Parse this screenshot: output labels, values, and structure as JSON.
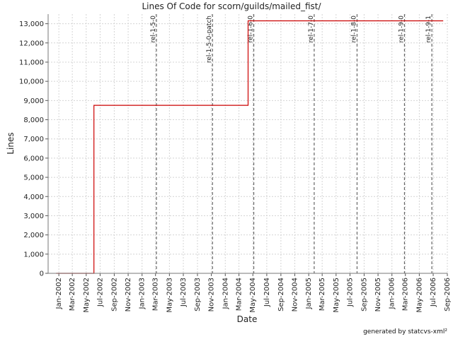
{
  "chart_data": {
    "type": "line",
    "title": "Lines Of Code for scorn/guilds/mailed_fist/",
    "xlabel": "Date",
    "ylabel": "Lines",
    "ylim": [
      0,
      13500
    ],
    "xlim": [
      "2001-11-15",
      "2006-09-01"
    ],
    "y_ticks": [
      0,
      1000,
      2000,
      3000,
      4000,
      5000,
      6000,
      7000,
      8000,
      9000,
      10000,
      11000,
      12000,
      13000
    ],
    "x_ticks": [
      {
        "date": "2002-01-01",
        "label": "Jan-2002"
      },
      {
        "date": "2002-03-01",
        "label": "Mar-2002"
      },
      {
        "date": "2002-05-01",
        "label": "May-2002"
      },
      {
        "date": "2002-07-01",
        "label": "Jul-2002"
      },
      {
        "date": "2002-09-01",
        "label": "Sep-2002"
      },
      {
        "date": "2002-11-01",
        "label": "Nov-2002"
      },
      {
        "date": "2003-01-01",
        "label": "Jan-2003"
      },
      {
        "date": "2003-03-01",
        "label": "Mar-2003"
      },
      {
        "date": "2003-05-01",
        "label": "May-2003"
      },
      {
        "date": "2003-07-01",
        "label": "Jul-2003"
      },
      {
        "date": "2003-09-01",
        "label": "Sep-2003"
      },
      {
        "date": "2003-11-01",
        "label": "Nov-2003"
      },
      {
        "date": "2004-01-01",
        "label": "Jan-2004"
      },
      {
        "date": "2004-03-01",
        "label": "Mar-2004"
      },
      {
        "date": "2004-05-01",
        "label": "May-2004"
      },
      {
        "date": "2004-07-01",
        "label": "Jul-2004"
      },
      {
        "date": "2004-09-01",
        "label": "Sep-2004"
      },
      {
        "date": "2004-11-01",
        "label": "Nov-2004"
      },
      {
        "date": "2005-01-01",
        "label": "Jan-2005"
      },
      {
        "date": "2005-03-01",
        "label": "Mar-2005"
      },
      {
        "date": "2005-05-01",
        "label": "May-2005"
      },
      {
        "date": "2005-07-01",
        "label": "Jul-2005"
      },
      {
        "date": "2005-09-01",
        "label": "Sep-2005"
      },
      {
        "date": "2005-11-01",
        "label": "Nov-2005"
      },
      {
        "date": "2006-01-01",
        "label": "Jan-2006"
      },
      {
        "date": "2006-03-01",
        "label": "Mar-2006"
      },
      {
        "date": "2006-05-01",
        "label": "May-2006"
      },
      {
        "date": "2006-07-01",
        "label": "Jul-2006"
      },
      {
        "date": "2006-09-01",
        "label": "Sep-2006"
      }
    ],
    "grid": true,
    "series": [
      {
        "color": "#cc0000",
        "step": true,
        "points": [
          {
            "x": "2001-12-20",
            "y": 0
          },
          {
            "x": "2002-06-04",
            "y": 8750
          },
          {
            "x": "2004-04-10",
            "y": 13150
          },
          {
            "x": "2006-08-14",
            "y": 13150
          }
        ]
      }
    ],
    "markers": [
      {
        "label": "rel-1-5-0",
        "date": "2003-03-05"
      },
      {
        "label": "rel-1-5-0-patch",
        "date": "2003-11-06"
      },
      {
        "label": "rel-1-6-0",
        "date": "2004-05-05"
      },
      {
        "label": "rel-1-7-0",
        "date": "2005-01-25"
      },
      {
        "label": "rel-1-8-0",
        "date": "2005-08-01"
      },
      {
        "label": "rel-1-9-0",
        "date": "2006-02-25"
      },
      {
        "label": "rel-1-9-1",
        "date": "2006-06-25"
      }
    ]
  },
  "footer": "generated by statcvs-xml²"
}
